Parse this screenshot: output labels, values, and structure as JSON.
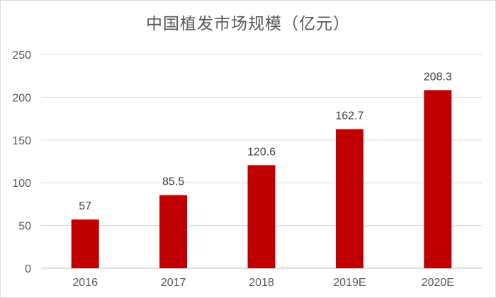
{
  "chart_data": {
    "type": "bar",
    "title": "中国植发市场规模（亿元）",
    "categories": [
      "2016",
      "2017",
      "2018",
      "2019E",
      "2020E"
    ],
    "values": [
      57,
      85.5,
      120.6,
      162.7,
      208.3
    ],
    "value_labels": [
      "57",
      "85.5",
      "120.6",
      "162.7",
      "208.3"
    ],
    "y_ticks": [
      "0",
      "50",
      "100",
      "150",
      "200",
      "250"
    ],
    "ylim": [
      0,
      250
    ],
    "grid": true,
    "legend": "none",
    "bar_color": "#c00000"
  }
}
